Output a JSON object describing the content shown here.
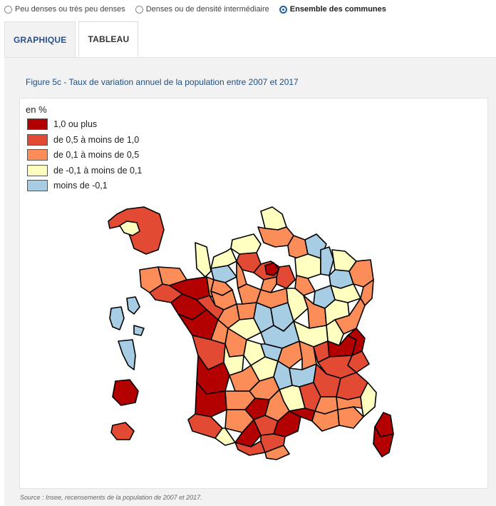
{
  "radios": [
    {
      "label": "Peu denses ou très peu denses",
      "selected": false
    },
    {
      "label": "Denses ou de densité intermédiaire",
      "selected": false
    },
    {
      "label": "Ensemble des communes",
      "selected": true
    }
  ],
  "tabs": [
    {
      "label": "GRAPHIQUE",
      "active": true
    },
    {
      "label": "TABLEAU",
      "active": false
    }
  ],
  "figure": {
    "title": "Figure 5c - Taux de variation annuel de la population entre 2007 et 2017",
    "legend_title": "en %",
    "legend": [
      {
        "label": "1,0 ou plus",
        "color": "#b30000"
      },
      {
        "label": "de 0,5 à moins de 1,0",
        "color": "#e34a33"
      },
      {
        "label": "de 0,1 à moins de 0,5",
        "color": "#fc8d59"
      },
      {
        "label": "de -0,1 à moins de 0,1",
        "color": "#ffffc0"
      },
      {
        "label": "moins de -0,1",
        "color": "#a6cde4"
      }
    ],
    "source": "Source : Insee, recensements de la population de 2007 et 2017."
  },
  "map_colors": {
    "c1": "#b30000",
    "c2": "#e34a33",
    "c3": "#fc8d59",
    "c4": "#ffffc0",
    "c5": "#a6cde4",
    "border": "#000000"
  }
}
